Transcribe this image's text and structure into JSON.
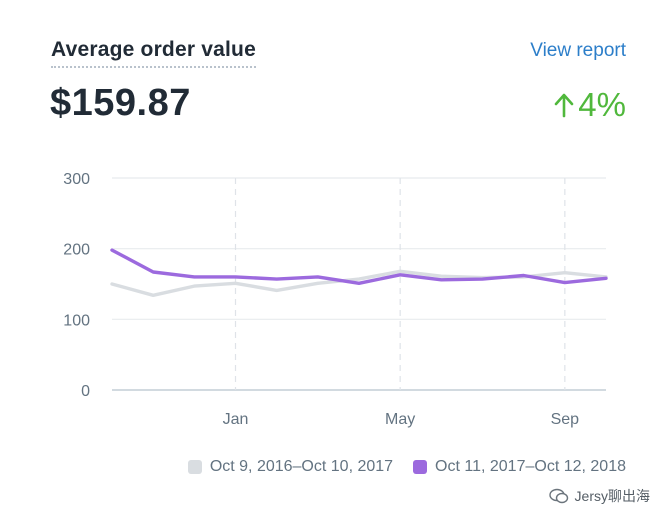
{
  "header": {
    "title": "Average order value",
    "view_report": "View report"
  },
  "metric": {
    "value": "$159.87",
    "change": "4%",
    "change_direction": "up",
    "change_color": "#50b83c"
  },
  "chart_data": {
    "type": "line",
    "ylim": [
      0,
      300
    ],
    "yticks": [
      "0",
      "100",
      "200",
      "300"
    ],
    "xticks": [
      "Jan",
      "May",
      "Sep"
    ],
    "grid": true,
    "legend_placement": "bottom-right",
    "series": [
      {
        "name": "Oct 9, 2016–Oct 10, 2017",
        "color": "#d9dde1",
        "values": [
          150,
          134,
          147,
          151,
          141,
          151,
          157,
          168,
          161,
          159,
          160,
          166,
          160
        ]
      },
      {
        "name": "Oct 11, 2017–Oct 12, 2018",
        "color": "#9c6ade",
        "values": [
          198,
          167,
          160,
          160,
          157,
          160,
          151,
          163,
          156,
          157,
          162,
          152,
          158
        ]
      }
    ]
  },
  "watermark": {
    "text": "Jersy聊出海"
  }
}
